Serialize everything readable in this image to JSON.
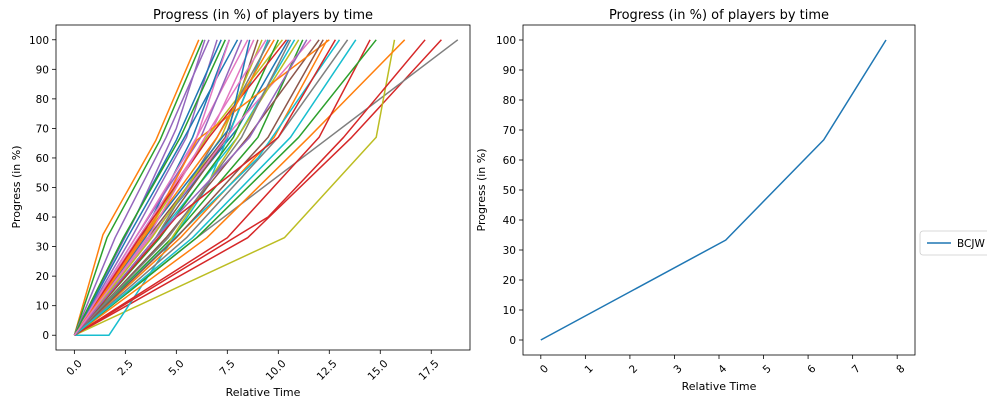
{
  "chart_data": [
    {
      "type": "line",
      "title": "Progress (in %) of players by time",
      "xlabel": "Relative Time",
      "ylabel": "Progress (in %)",
      "xlim": [
        -0.9,
        19.4
      ],
      "ylim": [
        -5,
        105
      ],
      "xticks": [
        0,
        2.5,
        5,
        7.5,
        10,
        12.5,
        15,
        17.5
      ],
      "xtick_labels": [
        "0.0",
        "2.5",
        "5.0",
        "7.5",
        "10.0",
        "12.5",
        "15.0",
        "17.5"
      ],
      "yticks": [
        0,
        10,
        20,
        30,
        40,
        50,
        60,
        70,
        80,
        90,
        100
      ],
      "ytick_labels": [
        "0",
        "10",
        "20",
        "30",
        "40",
        "50",
        "60",
        "70",
        "80",
        "90",
        "100"
      ],
      "grid": false,
      "legend": "none",
      "series": [
        {
          "color": "#1f77b4",
          "x": [
            0,
            4.5,
            8.0,
            10.5
          ],
          "y": [
            0,
            40,
            70,
            100
          ]
        },
        {
          "color": "#ff7f0e",
          "x": [
            0,
            1.4,
            4.0,
            6.1
          ],
          "y": [
            0,
            34,
            66,
            100
          ]
        },
        {
          "color": "#2ca02c",
          "x": [
            0,
            1.6,
            4.2,
            6.3
          ],
          "y": [
            0,
            33,
            66,
            100
          ]
        },
        {
          "color": "#d62728",
          "x": [
            0,
            8.5,
            13.6,
            18.0
          ],
          "y": [
            0,
            33,
            67,
            100
          ]
        },
        {
          "color": "#9467bd",
          "x": [
            0,
            3.0,
            5.0,
            6.4
          ],
          "y": [
            0,
            40,
            70,
            100
          ]
        },
        {
          "color": "#8c564b",
          "x": [
            0,
            4.0,
            7.5,
            9.5
          ],
          "y": [
            0,
            33,
            67,
            100
          ]
        },
        {
          "color": "#e377c2",
          "x": [
            0,
            3.5,
            6.0,
            8.5
          ],
          "y": [
            0,
            33,
            67,
            100
          ]
        },
        {
          "color": "#7f7f7f",
          "x": [
            0,
            6.0,
            12.5,
            18.8
          ],
          "y": [
            0,
            33,
            67,
            100
          ]
        },
        {
          "color": "#bcbd22",
          "x": [
            0,
            10.3,
            14.8,
            15.7
          ],
          "y": [
            0,
            33,
            67,
            100
          ]
        },
        {
          "color": "#17becf",
          "x": [
            0,
            1.7,
            6.5,
            9.5
          ],
          "y": [
            0,
            0,
            50,
            100
          ]
        },
        {
          "color": "#1f77b4",
          "x": [
            0,
            3.3,
            5.8,
            7.6
          ],
          "y": [
            0,
            33,
            67,
            100
          ]
        },
        {
          "color": "#ff7f0e",
          "x": [
            0,
            5.2,
            9.8,
            12.4
          ],
          "y": [
            0,
            33,
            67,
            100
          ]
        },
        {
          "color": "#2ca02c",
          "x": [
            0,
            4.8,
            9.0,
            11.2
          ],
          "y": [
            0,
            33,
            67,
            100
          ]
        },
        {
          "color": "#d62728",
          "x": [
            0,
            9.5,
            13.2,
            17.2
          ],
          "y": [
            0,
            40,
            67,
            100
          ]
        },
        {
          "color": "#9467bd",
          "x": [
            0,
            2.8,
            5.5,
            7.0
          ],
          "y": [
            0,
            33,
            67,
            100
          ]
        },
        {
          "color": "#8c564b",
          "x": [
            0,
            4.5,
            8.5,
            12.0
          ],
          "y": [
            0,
            33,
            67,
            100
          ]
        },
        {
          "color": "#e377c2",
          "x": [
            0,
            3.8,
            6.8,
            8.8
          ],
          "y": [
            0,
            40,
            70,
            100
          ]
        },
        {
          "color": "#7f7f7f",
          "x": [
            0,
            5.5,
            10.0,
            13.4
          ],
          "y": [
            0,
            33,
            67,
            100
          ]
        },
        {
          "color": "#bcbd22",
          "x": [
            0,
            3.4,
            6.5,
            10.2
          ],
          "y": [
            0,
            33,
            67,
            100
          ]
        },
        {
          "color": "#17becf",
          "x": [
            0,
            4.0,
            8.0,
            10.8
          ],
          "y": [
            0,
            33,
            67,
            100
          ]
        },
        {
          "color": "#1f77b4",
          "x": [
            0,
            2.2,
            5.0,
            7.2
          ],
          "y": [
            0,
            30,
            66,
            100
          ]
        },
        {
          "color": "#ff7f0e",
          "x": [
            0,
            6.5,
            11.5,
            16.2
          ],
          "y": [
            0,
            33,
            67,
            100
          ]
        },
        {
          "color": "#2ca02c",
          "x": [
            0,
            4.2,
            7.8,
            10.0
          ],
          "y": [
            0,
            33,
            67,
            100
          ]
        },
        {
          "color": "#d62728",
          "x": [
            0,
            7.5,
            12.0,
            14.5
          ],
          "y": [
            0,
            33,
            67,
            100
          ]
        },
        {
          "color": "#9467bd",
          "x": [
            0,
            3.0,
            6.2,
            8.2
          ],
          "y": [
            0,
            33,
            67,
            100
          ]
        },
        {
          "color": "#8c564b",
          "x": [
            0,
            3.6,
            7.4,
            9.0
          ],
          "y": [
            0,
            33,
            67,
            100
          ]
        },
        {
          "color": "#e377c2",
          "x": [
            0,
            4.5,
            7.8,
            11.6
          ],
          "y": [
            0,
            40,
            70,
            100
          ]
        },
        {
          "color": "#7f7f7f",
          "x": [
            0,
            4.0,
            7.0,
            9.6
          ],
          "y": [
            0,
            33,
            67,
            100
          ]
        },
        {
          "color": "#bcbd22",
          "x": [
            0,
            4.5,
            8.0,
            11.0
          ],
          "y": [
            0,
            30,
            67,
            100
          ]
        },
        {
          "color": "#17becf",
          "x": [
            0,
            3.0,
            9.0,
            13.0
          ],
          "y": [
            0,
            20,
            60,
            100
          ]
        },
        {
          "color": "#1f77b4",
          "x": [
            0,
            2.6,
            5.4,
            8.0
          ],
          "y": [
            0,
            33,
            67,
            100
          ]
        },
        {
          "color": "#ff7f0e",
          "x": [
            0,
            4.0,
            6.0,
            12.5
          ],
          "y": [
            0,
            40,
            66,
            100
          ]
        },
        {
          "color": "#2ca02c",
          "x": [
            0,
            6.0,
            11.0,
            14.8
          ],
          "y": [
            0,
            33,
            67,
            100
          ]
        },
        {
          "color": "#d62728",
          "x": [
            0,
            3.2,
            6.6,
            10.4
          ],
          "y": [
            0,
            33,
            67,
            100
          ]
        },
        {
          "color": "#9467bd",
          "x": [
            0,
            2.0,
            4.5,
            6.6
          ],
          "y": [
            0,
            33,
            67,
            100
          ]
        },
        {
          "color": "#8c564b",
          "x": [
            0,
            5.0,
            9.5,
            12.2
          ],
          "y": [
            0,
            33,
            67,
            100
          ]
        },
        {
          "color": "#e377c2",
          "x": [
            0,
            3.0,
            6.0,
            7.6
          ],
          "y": [
            0,
            33,
            67,
            100
          ]
        },
        {
          "color": "#7f7f7f",
          "x": [
            0,
            4.6,
            8.2,
            10.6
          ],
          "y": [
            0,
            33,
            67,
            100
          ]
        },
        {
          "color": "#bcbd22",
          "x": [
            0,
            3.8,
            7.2,
            9.2
          ],
          "y": [
            0,
            33,
            67,
            100
          ]
        },
        {
          "color": "#17becf",
          "x": [
            0,
            5.8,
            10.6,
            13.8
          ],
          "y": [
            0,
            33,
            67,
            100
          ]
        },
        {
          "color": "#1f77b4",
          "x": [
            0,
            4.2,
            7.6,
            8.6
          ],
          "y": [
            0,
            40,
            70,
            100
          ]
        },
        {
          "color": "#ff7f0e",
          "x": [
            0,
            3.4,
            7.0,
            9.8
          ],
          "y": [
            0,
            33,
            67,
            100
          ]
        },
        {
          "color": "#2ca02c",
          "x": [
            0,
            2.4,
            5.2,
            7.4
          ],
          "y": [
            0,
            33,
            67,
            100
          ]
        },
        {
          "color": "#d62728",
          "x": [
            0,
            5.0,
            10.0,
            12.8
          ],
          "y": [
            0,
            40,
            67,
            100
          ]
        },
        {
          "color": "#9467bd",
          "x": [
            0,
            4.0,
            8.6,
            11.4
          ],
          "y": [
            0,
            33,
            67,
            100
          ]
        },
        {
          "color": "#e377c2",
          "x": [
            0,
            3.6,
            6.4,
            9.4
          ],
          "y": [
            0,
            33,
            67,
            100
          ]
        }
      ]
    },
    {
      "type": "line",
      "title": "Progress (in %) of players by time",
      "xlabel": "Relative Time",
      "ylabel": "Progress (in %)",
      "xlim": [
        -0.4,
        8.4
      ],
      "ylim": [
        -5,
        105
      ],
      "xticks": [
        0,
        1,
        2,
        3,
        4,
        5,
        6,
        7,
        8
      ],
      "xtick_labels": [
        "0",
        "1",
        "2",
        "3",
        "4",
        "5",
        "6",
        "7",
        "8"
      ],
      "yticks": [
        0,
        10,
        20,
        30,
        40,
        50,
        60,
        70,
        80,
        90,
        100
      ],
      "ytick_labels": [
        "0",
        "10",
        "20",
        "30",
        "40",
        "50",
        "60",
        "70",
        "80",
        "90",
        "100"
      ],
      "grid": false,
      "legend": "outside right",
      "series": [
        {
          "name": "BCJW",
          "color": "#1f77b4",
          "x": [
            0,
            4.15,
            6.35,
            7.75
          ],
          "y": [
            0,
            33.3,
            66.7,
            100
          ]
        }
      ]
    }
  ]
}
